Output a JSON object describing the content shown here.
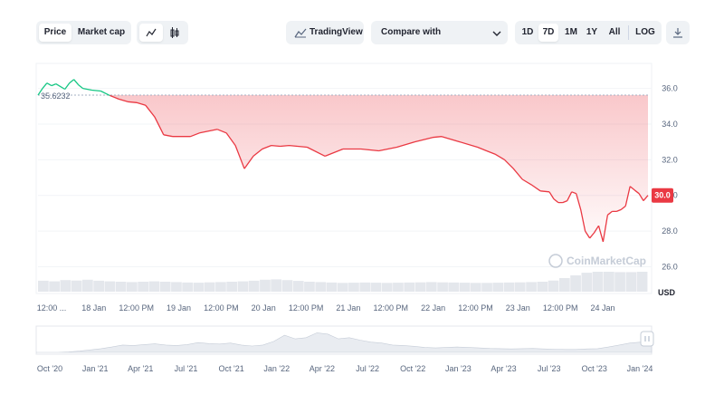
{
  "toolbar": {
    "price_label": "Price",
    "market_cap_label": "Market cap",
    "tradingview_label": "TradingView",
    "compare_label": "Compare with",
    "ranges": [
      "1D",
      "7D",
      "1M",
      "1Y",
      "All"
    ],
    "active_range": "7D",
    "log_label": "LOG",
    "icons": [
      "line-chart-icon",
      "candlestick-icon",
      "tradingview-icon",
      "chevron-down-icon",
      "download-icon"
    ]
  },
  "watermark": "CoinMarketCap",
  "colors": {
    "up": "#16c784",
    "down": "#ea3943",
    "current_badge": "#ea3943",
    "volume": "#e4e7ec",
    "navigator": "#e9ecf1"
  },
  "chart_data": {
    "type": "line",
    "ylabel": "USD",
    "ylim": [
      24.6,
      37.4
    ],
    "yticks": [
      "36.0",
      "34.0",
      "32.0",
      "30.0",
      "28.0",
      "26.0"
    ],
    "open_price": 35.6232,
    "open_price_label": "35.6232",
    "current_price": 30.0,
    "current_price_label": "30.0",
    "xticks": [
      "12:00 ...",
      "18 Jan",
      "12:00 PM",
      "19 Jan",
      "12:00 PM",
      "20 Jan",
      "12:00 PM",
      "21 Jan",
      "12:00 PM",
      "22 Jan",
      "12:00 PM",
      "23 Jan",
      "12:00 PM",
      "24 Jan"
    ],
    "x_range_days": [
      17.5,
      24.3
    ],
    "series": [
      {
        "x": [
          17.5,
          17.55,
          17.6,
          17.65,
          17.7,
          17.75,
          17.8,
          17.85,
          17.9,
          17.95,
          18.0,
          18.1,
          18.2,
          18.3,
          18.4,
          18.5,
          18.6,
          18.7,
          18.8,
          18.9,
          19.0,
          19.1,
          19.2,
          19.3,
          19.4,
          19.5,
          19.6,
          19.7,
          19.8,
          19.9,
          20.0,
          20.1,
          20.2,
          20.3,
          20.5,
          20.7,
          20.9,
          21.1,
          21.3,
          21.5,
          21.7,
          21.9,
          22.0,
          22.2,
          22.4,
          22.5,
          22.6,
          22.7,
          22.8,
          22.9,
          23.0,
          23.1,
          23.2,
          23.25,
          23.3,
          23.35,
          23.4,
          23.45,
          23.5,
          23.55,
          23.6,
          23.65,
          23.7,
          23.75,
          23.8,
          23.85,
          23.9,
          23.95,
          24.0,
          24.05,
          24.1,
          24.15,
          24.2,
          24.25,
          24.3
        ],
        "values": [
          35.62,
          36.0,
          36.3,
          36.15,
          36.25,
          36.1,
          35.95,
          36.3,
          36.5,
          36.2,
          36.0,
          35.9,
          35.85,
          35.6,
          35.4,
          35.25,
          35.2,
          35.05,
          34.4,
          33.4,
          33.3,
          33.3,
          33.3,
          33.5,
          33.6,
          33.7,
          33.5,
          32.8,
          31.5,
          32.2,
          32.6,
          32.8,
          32.75,
          32.8,
          32.7,
          32.2,
          32.6,
          32.6,
          32.5,
          32.7,
          33.0,
          33.25,
          33.3,
          33.0,
          32.7,
          32.5,
          32.3,
          32.0,
          31.5,
          30.9,
          30.6,
          30.25,
          30.2,
          29.8,
          29.6,
          29.6,
          29.7,
          30.2,
          30.1,
          29.2,
          28.0,
          27.6,
          27.9,
          28.3,
          27.4,
          28.9,
          29.1,
          29.1,
          29.2,
          29.4,
          30.5,
          30.3,
          30.1,
          29.7,
          30.0
        ]
      }
    ],
    "volume": [
      0.55,
      0.52,
      0.58,
      0.56,
      0.6,
      0.55,
      0.52,
      0.5,
      0.48,
      0.5,
      0.52,
      0.5,
      0.48,
      0.46,
      0.45,
      0.47,
      0.48,
      0.5,
      0.52,
      0.55,
      0.6,
      0.62,
      0.58,
      0.54,
      0.5,
      0.48,
      0.46,
      0.44,
      0.45,
      0.46,
      0.45,
      0.44,
      0.45,
      0.46,
      0.47,
      0.48,
      0.47,
      0.46,
      0.45,
      0.44,
      0.44,
      0.45,
      0.46,
      0.47,
      0.48,
      0.5,
      0.56,
      0.68,
      0.82,
      0.95,
      1.0,
      1.0,
      0.98,
      0.98,
      1.0
    ],
    "navigator": {
      "xticks": [
        "Oct '20",
        "Jan '21",
        "Apr '21",
        "Jul '21",
        "Oct '21",
        "Jan '22",
        "Apr '22",
        "Jul '22",
        "Oct '22",
        "Jan '23",
        "Apr '23",
        "Jul '23",
        "Oct '23",
        "Jan '24"
      ],
      "values": [
        0.0,
        0.0,
        0.0,
        0.02,
        0.05,
        0.1,
        0.15,
        0.22,
        0.3,
        0.28,
        0.32,
        0.35,
        0.3,
        0.28,
        0.32,
        0.4,
        0.36,
        0.34,
        0.38,
        0.3,
        0.26,
        0.3,
        0.45,
        0.7,
        0.55,
        0.6,
        0.8,
        0.75,
        0.55,
        0.6,
        0.5,
        0.42,
        0.38,
        0.3,
        0.28,
        0.25,
        0.2,
        0.18,
        0.2,
        0.22,
        0.2,
        0.18,
        0.16,
        0.15,
        0.14,
        0.15,
        0.16,
        0.14,
        0.13,
        0.12,
        0.12,
        0.14,
        0.15,
        0.22,
        0.3,
        0.38,
        0.42,
        0.48
      ]
    }
  }
}
